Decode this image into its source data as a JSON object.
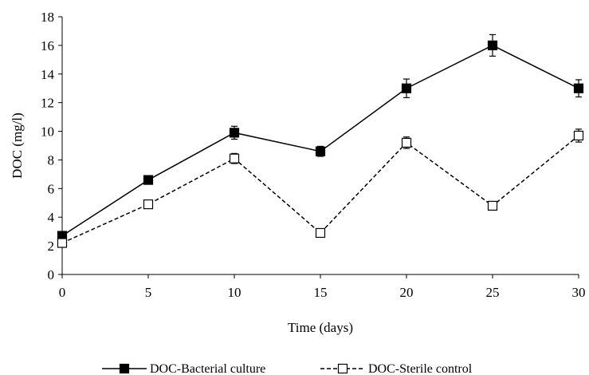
{
  "chart_data": {
    "type": "line",
    "xlabel": "Time (days)",
    "ylabel": "DOC (mg/l)",
    "xlim": [
      0,
      30
    ],
    "ylim": [
      0,
      18
    ],
    "xticks": [
      0,
      5,
      10,
      15,
      20,
      25,
      30
    ],
    "yticks": [
      0,
      2,
      4,
      6,
      8,
      10,
      12,
      14,
      16,
      18
    ],
    "grid": false,
    "legend_position": "bottom",
    "series": [
      {
        "name": "DOC-Bacterial culture",
        "marker": "filled-square",
        "line_style": "solid",
        "color": "#000000",
        "x": [
          0,
          5,
          10,
          15,
          20,
          25,
          30
        ],
        "y": [
          2.7,
          6.6,
          9.9,
          8.6,
          13.0,
          16.0,
          13.0
        ],
        "error": [
          0.2,
          0.25,
          0.45,
          0.35,
          0.65,
          0.75,
          0.6
        ]
      },
      {
        "name": "DOC-Sterile control",
        "marker": "open-square",
        "line_style": "dashed",
        "color": "#000000",
        "x": [
          0,
          5,
          10,
          15,
          20,
          25,
          30
        ],
        "y": [
          2.2,
          4.9,
          8.1,
          2.9,
          9.2,
          4.8,
          9.7
        ],
        "error": [
          0.1,
          0.1,
          0.35,
          0.1,
          0.4,
          0.1,
          0.45
        ]
      }
    ]
  }
}
